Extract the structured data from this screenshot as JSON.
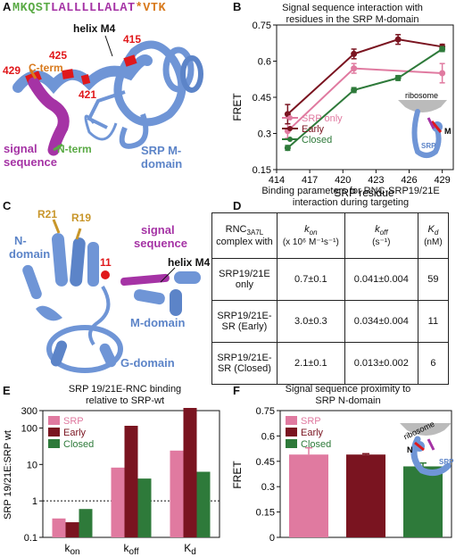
{
  "panels": {
    "A": {
      "letter": "A",
      "sequence": {
        "part1": "MKQST",
        "part2": "LALLLLLALAT",
        "part3": "*VTK"
      },
      "labels": {
        "helix": "helix M4",
        "cterm": "C-term",
        "nterm": "N-term",
        "signal_1": "signal",
        "signal_2": "sequence",
        "domain_1": "SRP M-",
        "domain_2": "domain",
        "res_429": "429",
        "res_425": "425",
        "res_421": "421",
        "res_415": "415"
      }
    },
    "B": {
      "letter": "B",
      "title_1": "Signal sequence interaction with",
      "title_2": "residues in the SRP M-domain",
      "ylabel": "FRET",
      "xlabel": "SRP residue",
      "inset": {
        "ribosome": "ribosome",
        "srp": "SRP",
        "m": "M"
      }
    },
    "C": {
      "letter": "C",
      "labels": {
        "r21": "R21",
        "r19": "R19",
        "n_domain_1": "N-",
        "n_domain_2": "domain",
        "res_11": "11",
        "signal_1": "signal",
        "signal_2": "sequence",
        "helix": "helix M4",
        "m_domain": "M-domain",
        "g_domain": "G-domain"
      }
    },
    "D": {
      "letter": "D",
      "title_1": "Binding parameters for RNC-SRP19/21E",
      "title_2": "interaction during targeting",
      "header": {
        "c1_line1": "RNC",
        "c1_sub": "3A7L",
        "c1_line2": "complex with",
        "c2_sym": "k",
        "c2_sub": "on",
        "c2_unit": "(x 10⁶ M⁻¹s⁻¹)",
        "c3_sym": "k",
        "c3_sub": "off",
        "c3_unit": "(s⁻¹)",
        "c4_sym": "K",
        "c4_sub": "d",
        "c4_unit": "(nM)"
      },
      "rows": [
        {
          "name1": "SRP19/21E",
          "name2": "only",
          "kon": "0.7±0.1",
          "koff": "0.041±0.004",
          "kd": "59"
        },
        {
          "name1": "SRP19/21E-",
          "name2": "SR (Early)",
          "kon": "3.0±0.3",
          "koff": "0.034±0.004",
          "kd": "11"
        },
        {
          "name1": "SRP19/21E-",
          "name2": "SR (Closed)",
          "kon": "2.1±0.1",
          "koff": "0.013±0.002",
          "kd": "6"
        }
      ]
    },
    "E": {
      "letter": "E",
      "title_1": "SRP 19/21E-RNC binding",
      "title_2": "relative to SRP-wt",
      "ylabel": "SRP 19/21E:SRP wt"
    },
    "F": {
      "letter": "F",
      "title_1": "Signal sequence proximity to",
      "title_2": "SRP N-domain",
      "ylabel": "FRET",
      "inset": {
        "ribosome": "ribosome",
        "srp": "SRP",
        "n": "N"
      }
    }
  },
  "colors": {
    "srp_only": "#e07aa0",
    "early": "#7a1420",
    "closed": "#2e7a3a",
    "protein": "#6f95d6",
    "signal": "#a533a5",
    "helix_red": "#e0181b",
    "seq_green": "#5aaa45",
    "seq_orange": "#d87a1e",
    "seq_purple": "#a533a5",
    "r_label": "#c8962a"
  },
  "chart_data": [
    {
      "type": "line",
      "panel": "B",
      "title": "Signal sequence interaction with residues in the SRP M-domain",
      "xlabel": "SRP residue",
      "ylabel": "FRET",
      "xlim": [
        414,
        430
      ],
      "ylim": [
        0.15,
        0.75
      ],
      "xticks": [
        414,
        417,
        420,
        423,
        426,
        429
      ],
      "yticks": [
        0.15,
        0.3,
        0.45,
        0.6,
        0.75
      ],
      "ytick_labels": [
        "0.15",
        "0.3",
        "0.45",
        "0.6",
        "0.75"
      ],
      "legend_position": "left-center",
      "series": [
        {
          "name": "SRP only",
          "color": "#e07aa0",
          "x": [
            415,
            421,
            429
          ],
          "y": [
            0.31,
            0.57,
            0.55
          ],
          "err": [
            0.03,
            0.02,
            0.04
          ]
        },
        {
          "name": "Early",
          "color": "#7a1420",
          "x": [
            415,
            421,
            425,
            429
          ],
          "y": [
            0.38,
            0.63,
            0.69,
            0.66
          ],
          "err": [
            0.04,
            0.02,
            0.02,
            0.01
          ]
        },
        {
          "name": "Closed",
          "color": "#2e7a3a",
          "x": [
            415,
            421,
            425,
            429
          ],
          "y": [
            0.24,
            0.48,
            0.53,
            0.65
          ],
          "err": [
            0.01,
            0.01,
            0.01,
            0.01
          ]
        }
      ]
    },
    {
      "type": "bar",
      "panel": "E",
      "title": "SRP 19/21E-RNC binding relative to SRP-wt",
      "ylabel": "SRP 19/21E:SRP wt",
      "yscale": "log",
      "ylim": [
        0.1,
        300
      ],
      "yticks": [
        0.1,
        1,
        10,
        100
      ],
      "ytick_labels": [
        "0.1",
        "1",
        "10",
        "100"
      ],
      "yticks_minor": [
        300
      ],
      "ytick_minor_labels": [
        "300"
      ],
      "reference_line": 1,
      "legend_position": "top-left",
      "categories": [
        "kon",
        "koff",
        "Kd"
      ],
      "category_labels": [
        {
          "base": "k",
          "sub": "on"
        },
        {
          "base": "k",
          "sub": "off"
        },
        {
          "base": "K",
          "sub": "d"
        }
      ],
      "series": [
        {
          "name": "SRP",
          "color": "#e07aa0",
          "values": [
            0.33,
            8.2,
            24
          ]
        },
        {
          "name": "Early",
          "color": "#7a1420",
          "values": [
            0.26,
            115,
            355
          ]
        },
        {
          "name": "Closed",
          "color": "#2e7a3a",
          "values": [
            0.6,
            4.1,
            6.3
          ]
        }
      ]
    },
    {
      "type": "bar",
      "panel": "F",
      "title": "Signal sequence proximity to SRP N-domain",
      "ylabel": "FRET",
      "ylim": [
        0,
        0.75
      ],
      "yticks": [
        0,
        0.15,
        0.3,
        0.45,
        0.6,
        0.75
      ],
      "ytick_labels": [
        "0",
        "0.15",
        "0.3",
        "0.45",
        "0.6",
        "0.75"
      ],
      "legend_position": "top-left",
      "categories": [
        "SRP",
        "Early",
        "Closed"
      ],
      "series": [
        {
          "name": "FRET",
          "colors": [
            "#e07aa0",
            "#7a1420",
            "#2e7a3a"
          ],
          "values": [
            0.49,
            0.49,
            0.42
          ],
          "err": [
            0.04,
            0.005,
            0.02
          ]
        }
      ]
    }
  ]
}
